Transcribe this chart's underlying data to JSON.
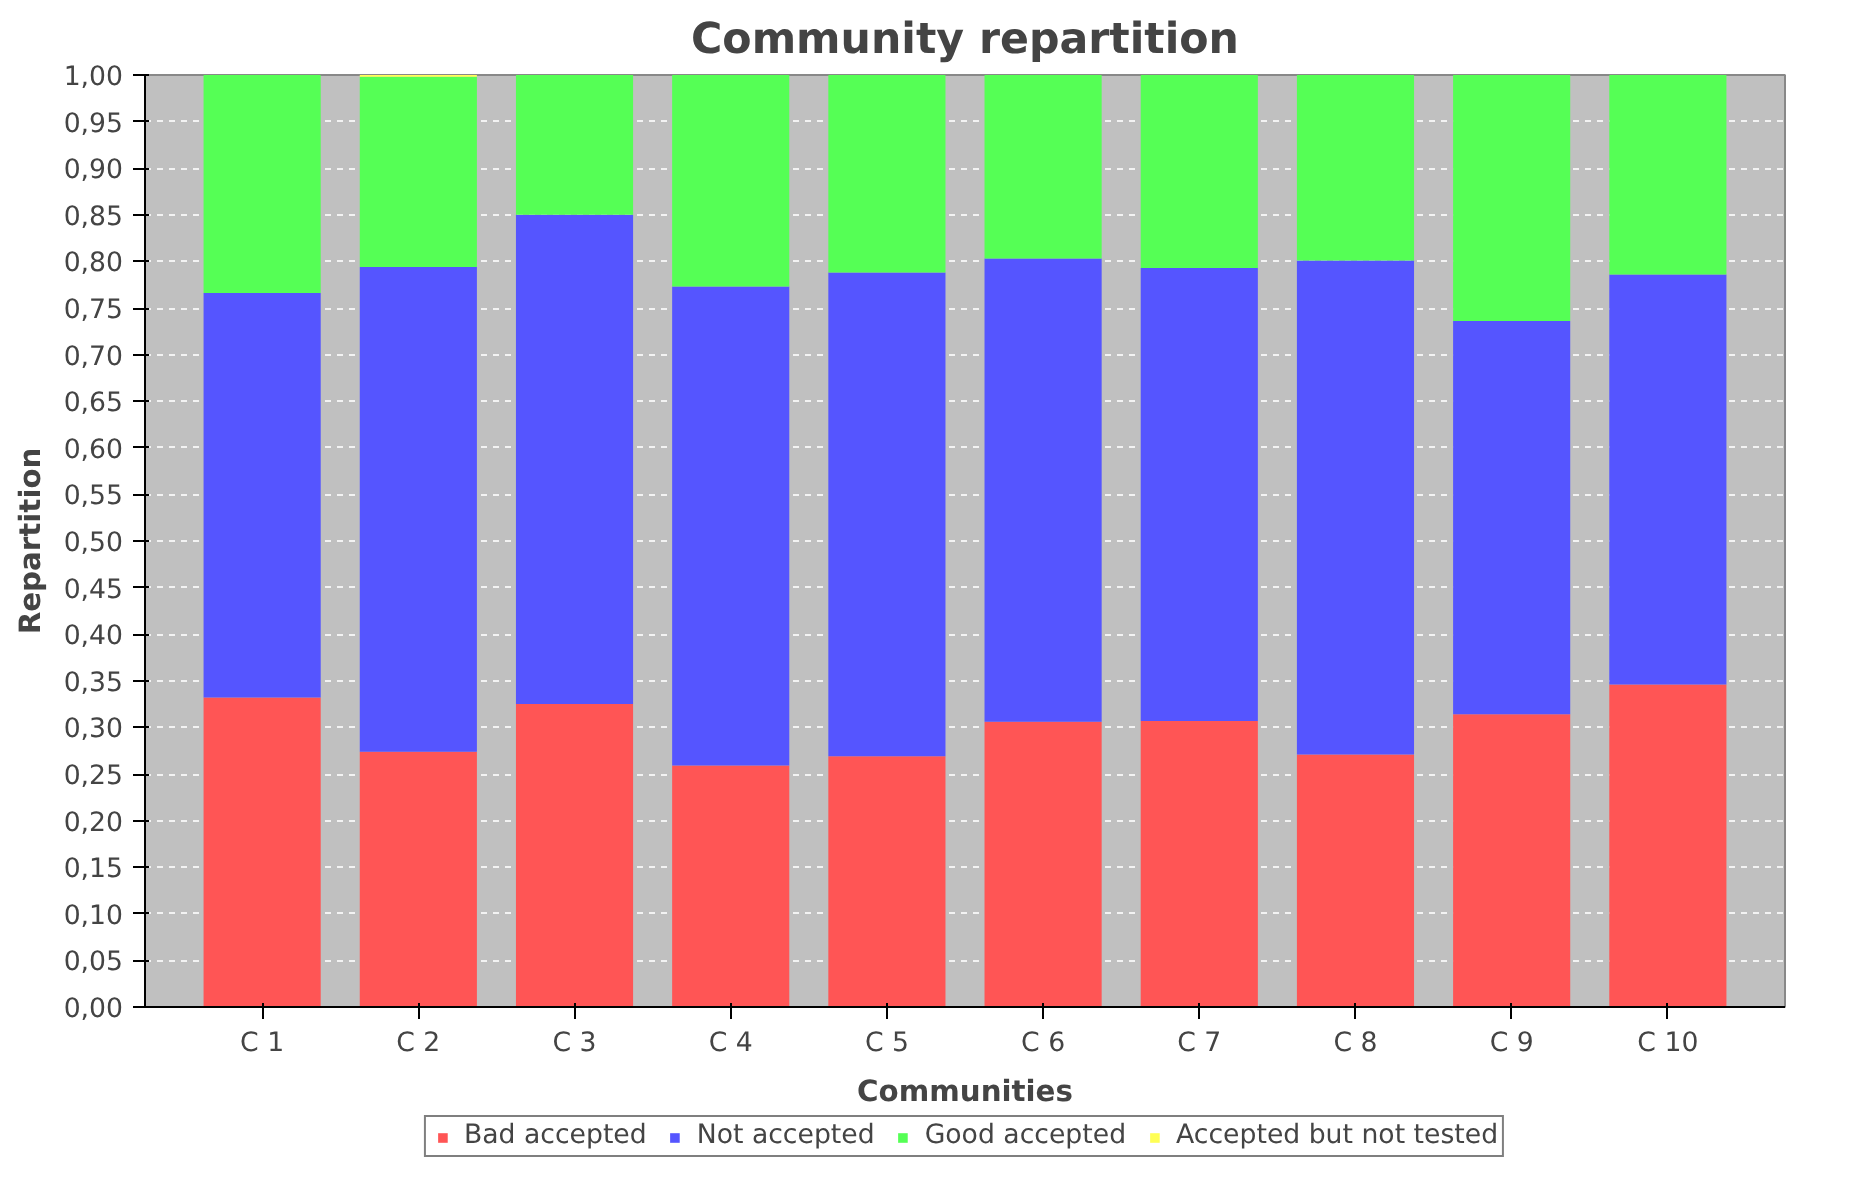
{
  "chart_data": {
    "type": "bar",
    "stacked": true,
    "title": "Community repartition",
    "xlabel": "Communities",
    "ylabel": "Repartition",
    "categories": [
      "C 1",
      "C 2",
      "C 3",
      "C 4",
      "C 5",
      "C 6",
      "C 7",
      "C 8",
      "C 9",
      "C 10"
    ],
    "series": [
      {
        "name": "Bad accepted",
        "color": "#ff5555",
        "values": [
          0.332,
          0.274,
          0.325,
          0.259,
          0.269,
          0.306,
          0.307,
          0.271,
          0.314,
          0.346
        ]
      },
      {
        "name": "Not accepted",
        "color": "#5555ff",
        "values": [
          0.434,
          0.52,
          0.525,
          0.514,
          0.519,
          0.497,
          0.486,
          0.53,
          0.422,
          0.44
        ]
      },
      {
        "name": "Good accepted",
        "color": "#55ff55",
        "values": [
          0.234,
          0.204,
          0.15,
          0.227,
          0.212,
          0.197,
          0.207,
          0.199,
          0.264,
          0.214
        ]
      },
      {
        "name": "Accepted but not tested",
        "color": "#ffff55",
        "values": [
          0,
          0.002,
          0,
          0,
          0,
          0,
          0,
          0,
          0,
          0
        ]
      }
    ],
    "ylim": [
      0,
      1
    ],
    "yticks": [
      {
        "value": 0,
        "label": "0,00"
      },
      {
        "value": 0.05,
        "label": "0,05"
      },
      {
        "value": 0.1,
        "label": "0,10"
      },
      {
        "value": 0.15,
        "label": "0,15"
      },
      {
        "value": 0.2,
        "label": "0,20"
      },
      {
        "value": 0.25,
        "label": "0,25"
      },
      {
        "value": 0.3,
        "label": "0,30"
      },
      {
        "value": 0.35,
        "label": "0,35"
      },
      {
        "value": 0.4,
        "label": "0,40"
      },
      {
        "value": 0.45,
        "label": "0,45"
      },
      {
        "value": 0.5,
        "label": "0,50"
      },
      {
        "value": 0.55,
        "label": "0,55"
      },
      {
        "value": 0.6,
        "label": "0,60"
      },
      {
        "value": 0.65,
        "label": "0,65"
      },
      {
        "value": 0.7,
        "label": "0,70"
      },
      {
        "value": 0.75,
        "label": "0,75"
      },
      {
        "value": 0.8,
        "label": "0,80"
      },
      {
        "value": 0.85,
        "label": "0,85"
      },
      {
        "value": 0.9,
        "label": "0,90"
      },
      {
        "value": 0.95,
        "label": "0,95"
      },
      {
        "value": 1,
        "label": "1,00"
      }
    ],
    "grid": "y",
    "legend": "bottom"
  }
}
